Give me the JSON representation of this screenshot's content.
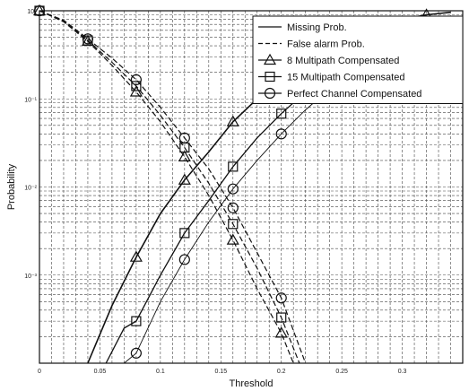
{
  "chart_data": {
    "type": "line",
    "title": "",
    "xlabel": "Threshold",
    "ylabel": "Probability",
    "xlim": [
      0,
      0.35
    ],
    "ylim": [
      0.0001,
      1
    ],
    "yscale": "log",
    "grid": true,
    "legend_position": "top-right",
    "x_ticks": [
      0,
      0.05,
      0.1,
      0.15,
      0.2,
      0.25,
      0.3
    ],
    "x_tick_labels": [
      "0",
      "0.05",
      "0.1",
      "0.15",
      "0.2",
      "0.25",
      "0.3"
    ],
    "y_ticks": [
      1,
      0.1,
      0.01,
      0.001
    ],
    "y_tick_labels": [
      "10⁰",
      "10⁻¹",
      "10⁻²",
      "10⁻³"
    ],
    "legend": [
      {
        "label": "Missing Prob.",
        "line": "solid",
        "marker": "none"
      },
      {
        "label": "False alarm Prob.",
        "line": "dashed",
        "marker": "none"
      },
      {
        "label": "8 Multipath Compensated",
        "line": "solid",
        "marker": "triangle"
      },
      {
        "label": "15 Multipath Compensated",
        "line": "solid",
        "marker": "square"
      },
      {
        "label": "Perfect Channel Compensated",
        "line": "solid",
        "marker": "circle"
      }
    ],
    "series": [
      {
        "kind": "missing",
        "marker": "triangle",
        "x": [
          0.04,
          0.06,
          0.08,
          0.1,
          0.12,
          0.14,
          0.16,
          0.18,
          0.2,
          0.22,
          0.24,
          0.26,
          0.28,
          0.3,
          0.32,
          0.34
        ],
        "y": [
          0.0001,
          0.00045,
          0.0016,
          0.005,
          0.012,
          0.025,
          0.055,
          0.1,
          0.16,
          0.25,
          0.37,
          0.5,
          0.65,
          0.8,
          0.9,
          0.96
        ],
        "marker_x": [
          0.08,
          0.12,
          0.16,
          0.2,
          0.32
        ]
      },
      {
        "kind": "missing",
        "marker": "square",
        "x": [
          0.055,
          0.07,
          0.08,
          0.1,
          0.12,
          0.14,
          0.16,
          0.18,
          0.2,
          0.22,
          0.24,
          0.26,
          0.28,
          0.3,
          0.32,
          0.34
        ],
        "y": [
          0.0001,
          0.00025,
          0.0003,
          0.001,
          0.003,
          0.007,
          0.017,
          0.036,
          0.068,
          0.12,
          0.2,
          0.3,
          0.42,
          0.56,
          0.7,
          0.82
        ],
        "marker_x": [
          0.08,
          0.12,
          0.16,
          0.2
        ]
      },
      {
        "kind": "missing",
        "marker": "circle",
        "x": [
          0.07,
          0.08,
          0.1,
          0.12,
          0.14,
          0.16,
          0.18,
          0.2,
          0.22,
          0.24,
          0.26,
          0.28,
          0.3,
          0.32,
          0.34
        ],
        "y": [
          0.0001,
          0.00013,
          0.0005,
          0.0015,
          0.004,
          0.0095,
          0.02,
          0.04,
          0.075,
          0.13,
          0.21,
          0.31,
          0.43,
          0.56,
          0.68
        ],
        "marker_x": [
          0.08,
          0.12,
          0.16,
          0.2
        ]
      },
      {
        "kind": "false_alarm",
        "marker": "triangle",
        "x": [
          0,
          0.02,
          0.04,
          0.06,
          0.08,
          0.1,
          0.12,
          0.14,
          0.16,
          0.18,
          0.2,
          0.21
        ],
        "y": [
          1,
          0.75,
          0.45,
          0.24,
          0.12,
          0.055,
          0.022,
          0.008,
          0.0025,
          0.0007,
          0.00022,
          0.0001
        ],
        "marker_x": [
          0,
          0.04,
          0.08,
          0.12,
          0.16,
          0.2
        ]
      },
      {
        "kind": "false_alarm",
        "marker": "square",
        "x": [
          0,
          0.02,
          0.04,
          0.06,
          0.08,
          0.1,
          0.12,
          0.14,
          0.16,
          0.18,
          0.2,
          0.215
        ],
        "y": [
          1,
          0.76,
          0.46,
          0.26,
          0.14,
          0.065,
          0.028,
          0.011,
          0.0038,
          0.0012,
          0.00033,
          0.0001
        ],
        "marker_x": [
          0,
          0.04,
          0.08,
          0.12,
          0.16,
          0.2
        ]
      },
      {
        "kind": "false_alarm",
        "marker": "circle",
        "x": [
          0,
          0.02,
          0.04,
          0.06,
          0.08,
          0.1,
          0.12,
          0.14,
          0.16,
          0.18,
          0.2,
          0.22
        ],
        "y": [
          1,
          0.78,
          0.48,
          0.29,
          0.165,
          0.08,
          0.036,
          0.016,
          0.0058,
          0.0018,
          0.00055,
          0.0001
        ],
        "marker_x": [
          0,
          0.04,
          0.08,
          0.12,
          0.16,
          0.2
        ]
      }
    ]
  }
}
